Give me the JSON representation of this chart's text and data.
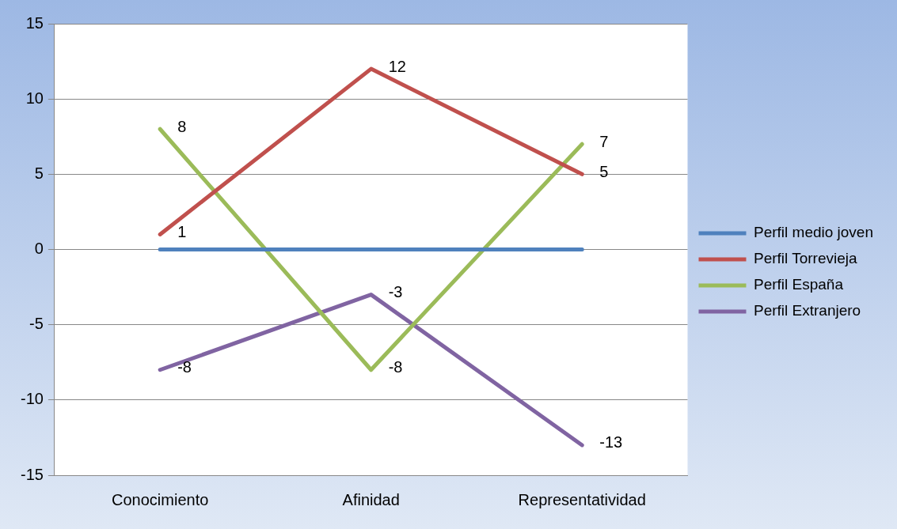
{
  "chart_data": {
    "type": "line",
    "categories": [
      "Conocimiento",
      "Afinidad",
      "Representatividad"
    ],
    "series": [
      {
        "name": "Perfil medio joven",
        "color": "#4f81bd",
        "values": [
          0,
          0,
          0
        ]
      },
      {
        "name": "Perfil Torrevieja",
        "color": "#c0504d",
        "values": [
          1,
          12,
          5
        ],
        "value_labels": [
          "1",
          "12",
          "5"
        ]
      },
      {
        "name": "Perfil España",
        "color": "#9bbb59",
        "values": [
          8,
          -8,
          7
        ],
        "value_labels": [
          "8",
          "-8",
          "7"
        ]
      },
      {
        "name": "Perfil Extranjero",
        "color": "#8064a2",
        "values": [
          -8,
          -3,
          -13
        ],
        "value_labels": [
          "-8",
          "-3",
          "-13"
        ]
      }
    ],
    "ylim": [
      -15,
      15
    ],
    "yticks": [
      -15,
      -10,
      -5,
      0,
      5,
      10,
      15
    ],
    "grid": "y",
    "legend": "right",
    "marker": "none",
    "line_style": "solid"
  }
}
